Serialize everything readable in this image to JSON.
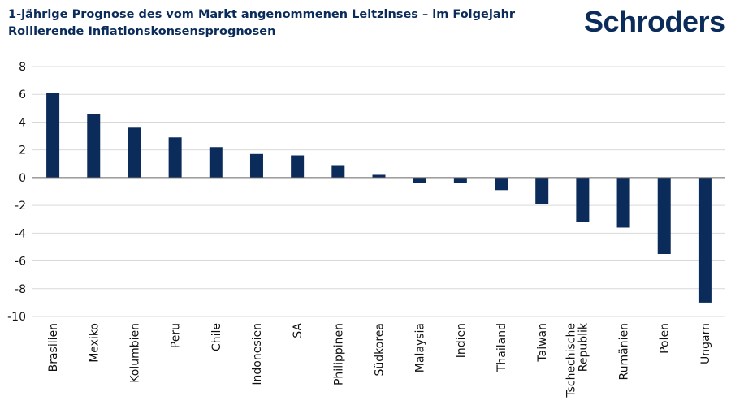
{
  "header": {
    "title": "1-jährige Prognose des vom Markt angenommenen Leitzinses – im Folgejahr",
    "subtitle": "Rollierende Inflationskonsensprognosen"
  },
  "logo": {
    "text": "Schroders"
  },
  "colors": {
    "bar": "#0b2c5a",
    "grid": "#d9d9d9",
    "axis": "#666666",
    "text": "#0b2c5a"
  },
  "chart_data": {
    "type": "bar",
    "title": "1-jährige Prognose des vom Markt angenommenen Leitzinses – im Folgejahr",
    "subtitle": "Rollierende Inflationskonsensprognosen",
    "xlabel": "",
    "ylabel": "",
    "ylim": [
      -10,
      8
    ],
    "yticks": [
      8,
      6,
      4,
      2,
      0,
      -2,
      -4,
      -6,
      -8,
      -10
    ],
    "grid": true,
    "categories": [
      "Brasilien",
      "Mexiko",
      "Kolumbien",
      "Peru",
      "Chile",
      "Indonesien",
      "SA",
      "Philippinen",
      "Südkorea",
      "Malaysia",
      "Indien",
      "Thailand",
      "Taiwan",
      "Tschechische Republik",
      "Rumänien",
      "Polen",
      "Ungarn"
    ],
    "label_lines": [
      [
        "Brasilien"
      ],
      [
        "Mexiko"
      ],
      [
        "Kolumbien"
      ],
      [
        "Peru"
      ],
      [
        "Chile"
      ],
      [
        "Indonesien"
      ],
      [
        "SA"
      ],
      [
        "Philippinen"
      ],
      [
        "Südkorea"
      ],
      [
        "Malaysia"
      ],
      [
        "Indien"
      ],
      [
        "Thailand"
      ],
      [
        "Taiwan"
      ],
      [
        "Tschechische",
        "Republik"
      ],
      [
        "Rumänien"
      ],
      [
        "Polen"
      ],
      [
        "Ungarn"
      ]
    ],
    "values": [
      6.1,
      4.6,
      3.6,
      2.9,
      2.2,
      1.7,
      1.6,
      0.9,
      0.2,
      -0.4,
      -0.4,
      -0.9,
      -1.9,
      -3.2,
      -3.6,
      -5.5,
      -9.0
    ]
  }
}
